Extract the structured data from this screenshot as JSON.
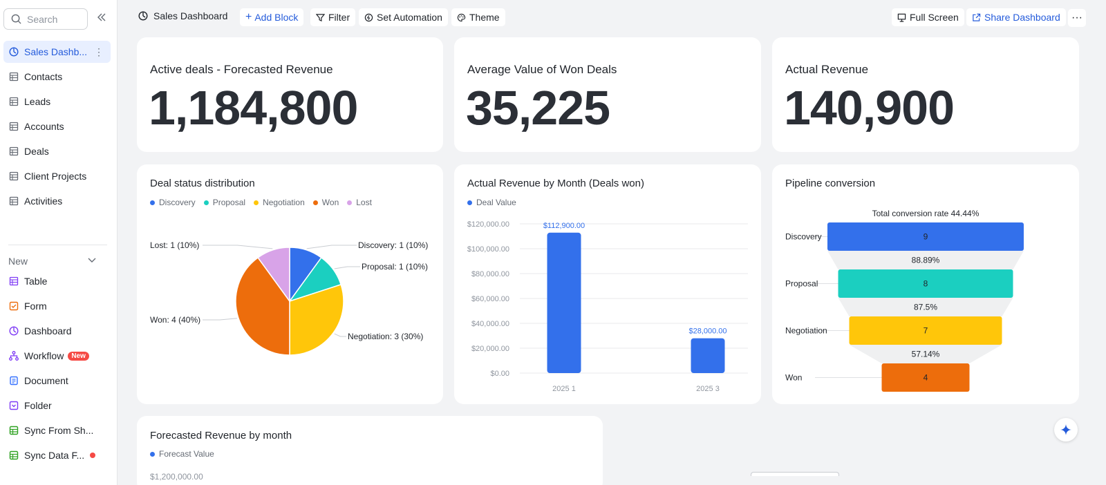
{
  "sidebar": {
    "search_placeholder": "Search",
    "items": [
      {
        "label": "Sales Dashb...",
        "icon": "dashboard-icon"
      },
      {
        "label": "Contacts",
        "icon": "table-icon"
      },
      {
        "label": "Leads",
        "icon": "table-icon"
      },
      {
        "label": "Accounts",
        "icon": "table-icon"
      },
      {
        "label": "Deals",
        "icon": "table-icon"
      },
      {
        "label": "Client Projects",
        "icon": "table-icon"
      },
      {
        "label": "Activities",
        "icon": "table-icon"
      }
    ],
    "new_section_label": "New",
    "new_items": [
      {
        "label": "Table",
        "icon": "table-icon",
        "color": "#7f3bf5"
      },
      {
        "label": "Form",
        "icon": "form-icon",
        "color": "#ed6d0c"
      },
      {
        "label": "Dashboard",
        "icon": "dashboard-icon",
        "color": "#7f3bf5"
      },
      {
        "label": "Workflow",
        "icon": "workflow-icon",
        "color": "#7f3bf5",
        "badge": "New"
      },
      {
        "label": "Document",
        "icon": "document-icon",
        "color": "#3370ff"
      },
      {
        "label": "Folder",
        "icon": "folder-icon",
        "color": "#7f3bf5"
      },
      {
        "label": "Sync From Sh...",
        "icon": "sync-sheet-icon",
        "color": "#2ea121"
      },
      {
        "label": "Sync Data F...",
        "icon": "sync-data-icon",
        "color": "#2ea121"
      }
    ]
  },
  "topbar": {
    "title": "Sales Dashboard",
    "add_block": "Add Block",
    "filter": "Filter",
    "set_automation": "Set Automation",
    "theme": "Theme",
    "full_screen": "Full Screen",
    "share_dashboard": "Share Dashboard",
    "more": "···"
  },
  "kpis": [
    {
      "label": "Active deals - Forecasted Revenue",
      "value": "1,184,800"
    },
    {
      "label": "Average Value of Won Deals",
      "value": "35,225"
    },
    {
      "label": "Actual Revenue",
      "value": "140,900"
    }
  ],
  "pie_card": {
    "title": "Deal status distribution"
  },
  "bar_card": {
    "title": "Actual Revenue by Month (Deals won)"
  },
  "funnel_card": {
    "title": "Pipeline conversion"
  },
  "forecast_card": {
    "title": "Forecasted Revenue by month",
    "legend": "Forecast Value",
    "partial_tick": "$1,200,000.00"
  },
  "colors": {
    "accent": "#245bdb",
    "blue": "#3370eb",
    "teal": "#1bcfc0",
    "yellow": "#ffc60a",
    "orange": "#ed6d0c",
    "lilac": "#d8a3e8"
  },
  "chart_data": [
    {
      "type": "pie",
      "title": "Deal status distribution",
      "categories": [
        "Discovery",
        "Proposal",
        "Negotiation",
        "Won",
        "Lost"
      ],
      "values": [
        1,
        1,
        3,
        4,
        1
      ],
      "labels": [
        "Discovery: 1 (10%)",
        "Proposal: 1 (10%)",
        "Negotiation: 3 (30%)",
        "Won: 4 (40%)",
        "Lost: 1 (10%)"
      ],
      "colors": [
        "#3370eb",
        "#1bcfc0",
        "#ffc60a",
        "#ed6d0c",
        "#d8a3e8"
      ],
      "legend": "top-left"
    },
    {
      "type": "bar",
      "title": "Actual Revenue by Month (Deals won)",
      "categories": [
        "2025  1",
        "2025  3"
      ],
      "series": [
        {
          "name": "Deal Value",
          "values": [
            112900,
            28000
          ]
        }
      ],
      "data_labels": [
        "$112,900.00",
        "$28,000.00"
      ],
      "ylim": [
        0,
        120000
      ],
      "yticks": [
        "$0.00",
        "$20,000.00",
        "$40,000.00",
        "$60,000.00",
        "$80,000.00",
        "$100,000.00",
        "$120,000.00"
      ],
      "grid": true,
      "color": "#3370eb"
    },
    {
      "type": "funnel",
      "title": "Pipeline conversion",
      "stages": [
        "Discovery",
        "Proposal",
        "Negotiation",
        "Won"
      ],
      "values": [
        9,
        8,
        7,
        4
      ],
      "conversion_rates": [
        "88.89%",
        "87.5%",
        "57.14%"
      ],
      "total_label": "Total conversion rate 44.44%",
      "colors": [
        "#3370eb",
        "#1bcfc0",
        "#ffc60a",
        "#ed6d0c"
      ]
    }
  ]
}
